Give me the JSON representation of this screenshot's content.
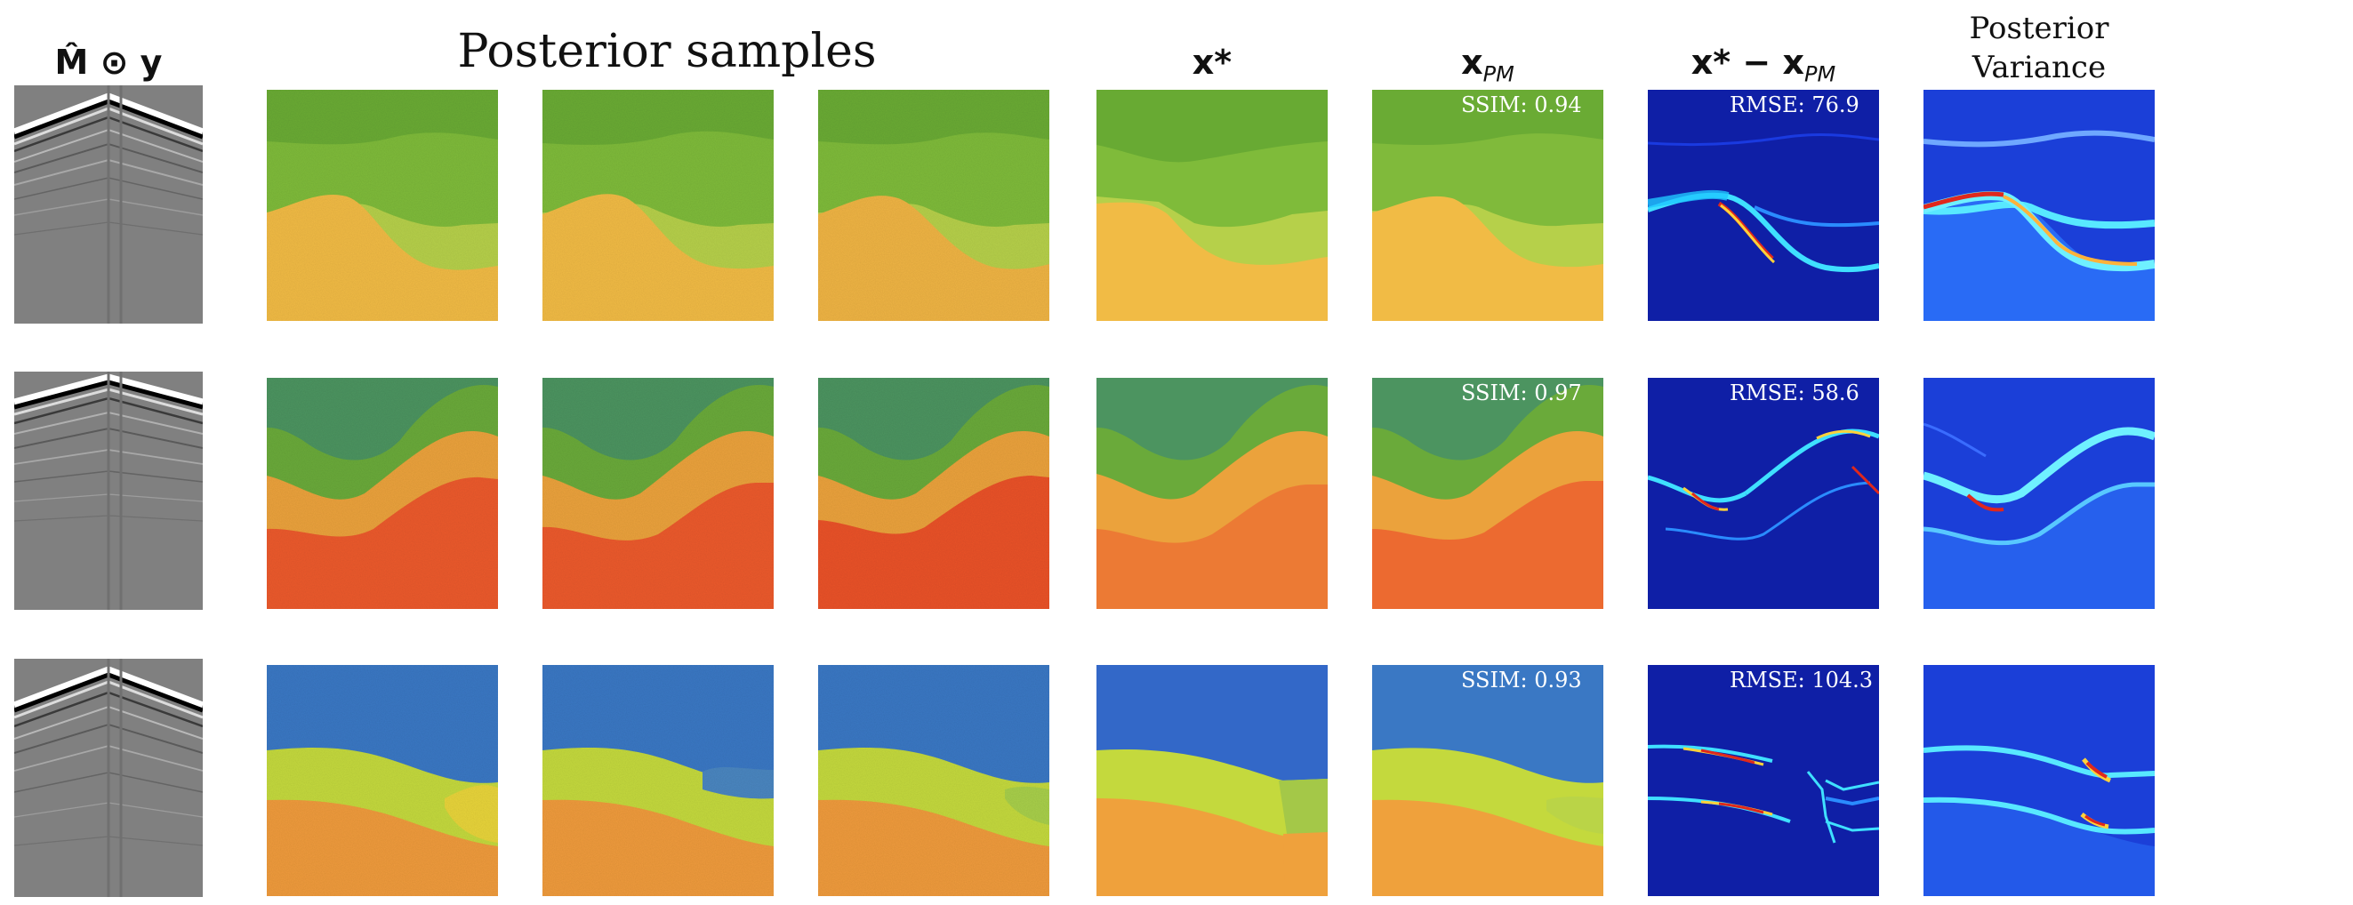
{
  "headers": {
    "observation": "M̂ ⊙ y",
    "posterior_samples": "Posterior  samples",
    "ground_truth": "x*",
    "posterior_mean_base": "x",
    "posterior_mean_sub": "PM",
    "error_base": "x* − x",
    "error_sub": "PM",
    "variance_line1": "Posterior",
    "variance_line2": "Variance"
  },
  "rows": [
    {
      "ssim": "SSIM: 0.94",
      "rmse": "RMSE: 76.9"
    },
    {
      "ssim": "SSIM: 0.97",
      "rmse": "RMSE: 58.6"
    },
    {
      "ssim": "SSIM: 0.93",
      "rmse": "RMSE: 104.3"
    }
  ],
  "colors": {
    "row1": [
      "#6aab34",
      "#b6d04a",
      "#f1bb45"
    ],
    "row2": [
      "#4c9460",
      "#eba23c",
      "#ec5a2c"
    ],
    "row3": [
      "#3a78c4",
      "#c4d93d",
      "#ef9b3c"
    ],
    "error_bg": "#0f1fa6",
    "variance_bg": "#1b3fd8"
  }
}
